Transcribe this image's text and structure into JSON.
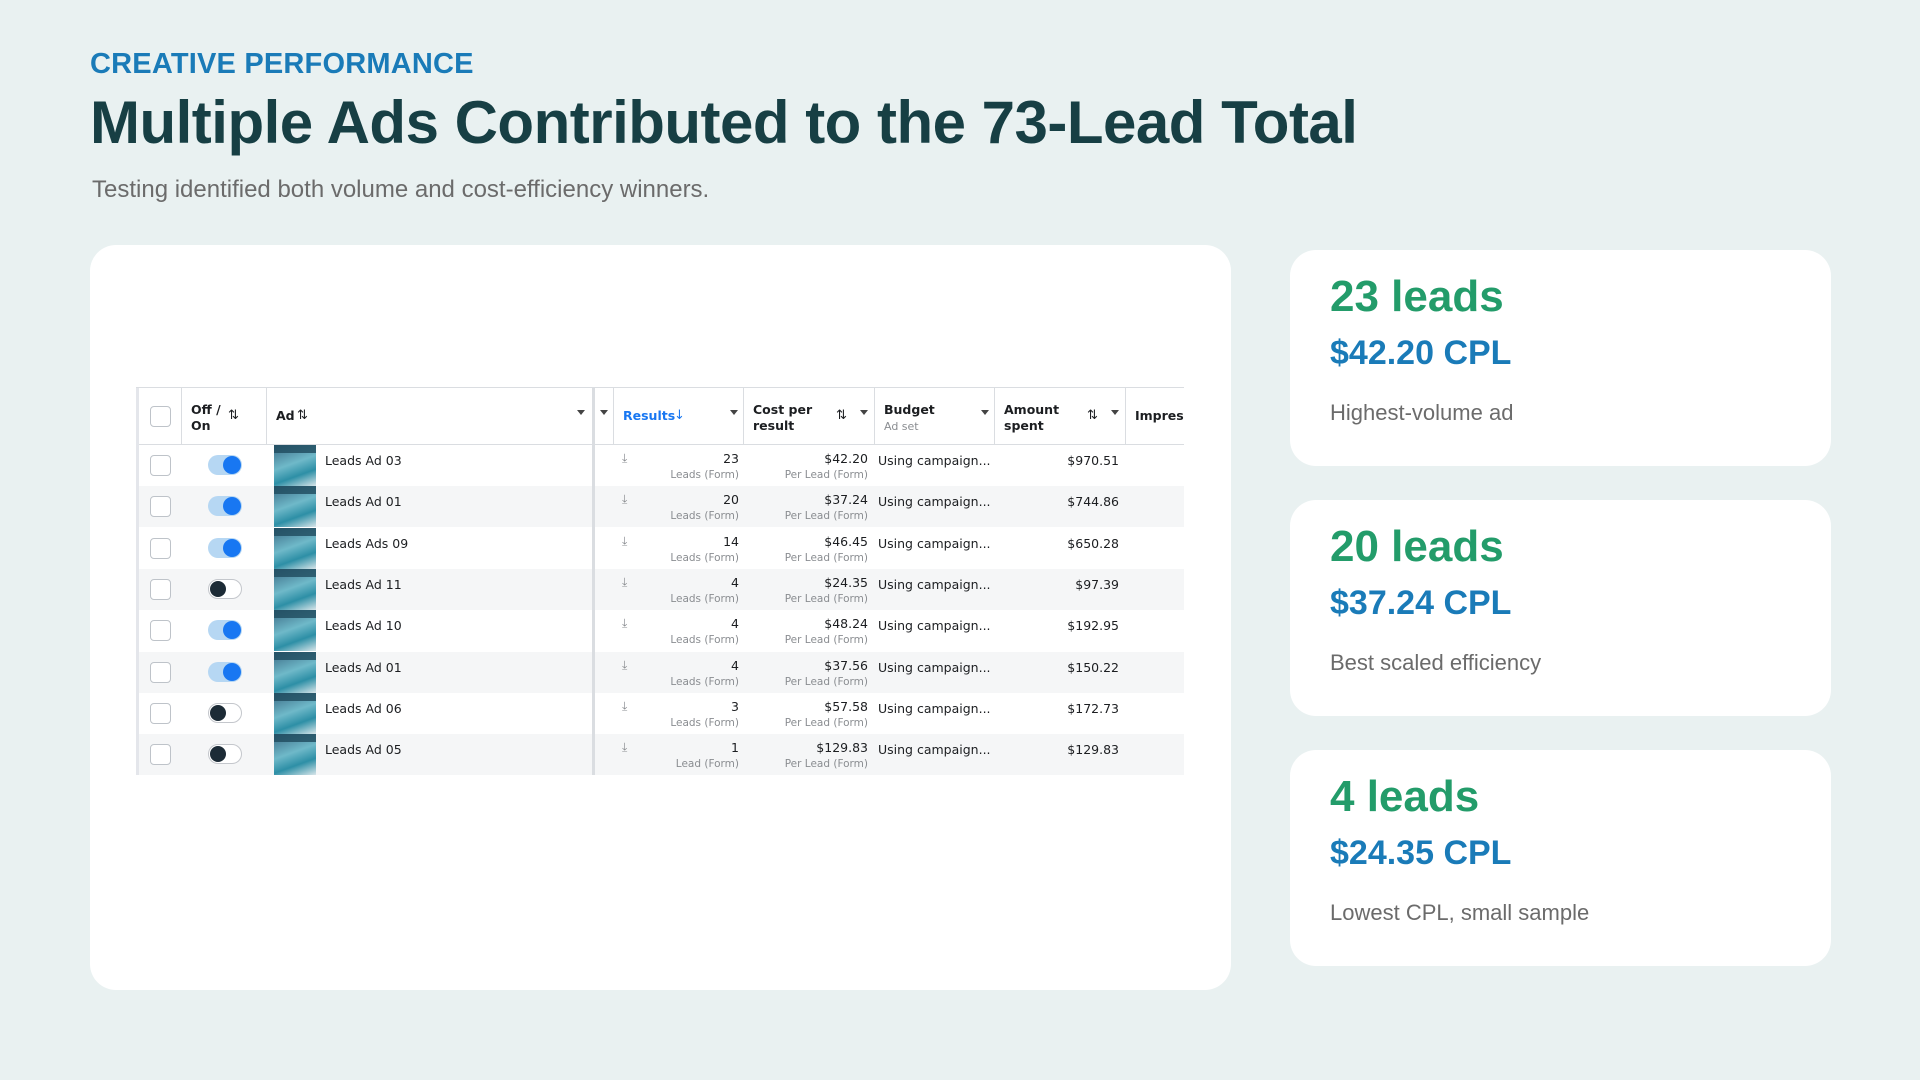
{
  "header": {
    "eyebrow": "CREATIVE PERFORMANCE",
    "title": "Multiple Ads Contributed to the 73-Lead Total",
    "subtitle": "Testing identified both volume and cost-efficiency winners."
  },
  "table": {
    "columns": {
      "toggle": "Off / On",
      "ad": "Ad",
      "results": "Results",
      "cost_per_result": "Cost per result",
      "budget": "Budget",
      "budget_sub": "Ad set",
      "amount_spent": "Amount spent",
      "impressions": "Impressi"
    },
    "rows": [
      {
        "ad": "Leads Ad 03",
        "on": true,
        "results": "23",
        "results_sub": "Leads (Form)",
        "cost": "$42.20",
        "cost_sub": "Per Lead (Form)",
        "budget": "Using campaign...",
        "spent": "$970.51"
      },
      {
        "ad": "Leads Ad 01",
        "on": true,
        "results": "20",
        "results_sub": "Leads (Form)",
        "cost": "$37.24",
        "cost_sub": "Per Lead (Form)",
        "budget": "Using campaign...",
        "spent": "$744.86"
      },
      {
        "ad": "Leads Ads 09",
        "on": true,
        "results": "14",
        "results_sub": "Leads (Form)",
        "cost": "$46.45",
        "cost_sub": "Per Lead (Form)",
        "budget": "Using campaign...",
        "spent": "$650.28"
      },
      {
        "ad": "Leads Ad 11",
        "on": false,
        "results": "4",
        "results_sub": "Leads (Form)",
        "cost": "$24.35",
        "cost_sub": "Per Lead (Form)",
        "budget": "Using campaign...",
        "spent": "$97.39"
      },
      {
        "ad": "Leads Ad 10",
        "on": true,
        "results": "4",
        "results_sub": "Leads (Form)",
        "cost": "$48.24",
        "cost_sub": "Per Lead (Form)",
        "budget": "Using campaign...",
        "spent": "$192.95"
      },
      {
        "ad": "Leads Ad 01",
        "on": true,
        "results": "4",
        "results_sub": "Leads (Form)",
        "cost": "$37.56",
        "cost_sub": "Per Lead (Form)",
        "budget": "Using campaign...",
        "spent": "$150.22"
      },
      {
        "ad": "Leads Ad 06",
        "on": false,
        "results": "3",
        "results_sub": "Leads (Form)",
        "cost": "$57.58",
        "cost_sub": "Per Lead (Form)",
        "budget": "Using campaign...",
        "spent": "$172.73"
      },
      {
        "ad": "Leads Ad 05",
        "on": false,
        "results": "1",
        "results_sub": "Lead (Form)",
        "cost": "$129.83",
        "cost_sub": "Per Lead (Form)",
        "budget": "Using campaign...",
        "spent": "$129.83"
      }
    ]
  },
  "cards": [
    {
      "leads": "23 leads",
      "cpl": "$42.20 CPL",
      "desc": "Highest-volume ad"
    },
    {
      "leads": "20 leads",
      "cpl": "$37.24 CPL",
      "desc": "Best scaled efficiency"
    },
    {
      "leads": "4 leads",
      "cpl": "$24.35 CPL",
      "desc": "Lowest CPL, small sample"
    }
  ],
  "colors": {
    "background": "#e9f1f1",
    "eyebrow": "#1a7bb8",
    "title": "#173f44",
    "leads": "#239c6a",
    "cpl": "#1a7bb8",
    "toggle_on": "#1877f2"
  }
}
